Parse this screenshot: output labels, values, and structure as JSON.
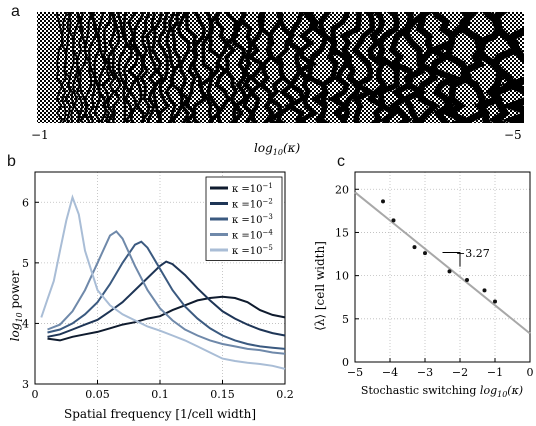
{
  "panel_a": {
    "letter": "a",
    "axis_left": "−1",
    "axis_right": "−5",
    "xlabel": "log",
    "xlabel_sub": "10",
    "xlabel_tail": "(κ)"
  },
  "panel_b": {
    "letter": "b",
    "ylabel": "log",
    "ylabel_sub": "10",
    "ylabel_tail": " power",
    "xlabel": "Spatial frequency [1/cell width]"
  },
  "panel_c": {
    "letter": "c",
    "ylabel": "⟨λ⟩ [cell width]",
    "xlabel_main": "Stochastic switching ",
    "xlabel_math": "log",
    "xlabel_sub": "10",
    "xlabel_tail": "(κ)",
    "slope_label": "−3.27"
  },
  "colors": {
    "k1": "#0f1b2e",
    "k2": "#1e3556",
    "k3": "#3b5a80",
    "k4": "#6f89aa",
    "k5": "#a9bdd6",
    "fit": "#a8a8a8"
  },
  "chart_data": [
    {
      "type": "line",
      "panel": "b",
      "xlabel": "Spatial frequency [1/cell width]",
      "ylabel": "log10 power",
      "xlim": [
        0,
        0.2
      ],
      "ylim": [
        3,
        6.5
      ],
      "xticks": [
        0,
        0.05,
        0.1,
        0.15,
        0.2
      ],
      "xtick_labels": [
        "0",
        "0.05",
        "0.1",
        "0.15",
        "0.2"
      ],
      "yticks": [
        3,
        4,
        5,
        6
      ],
      "ytick_labels": [
        "3",
        "4",
        "5",
        "6"
      ],
      "grid": true,
      "legend_position": "top-right",
      "series": [
        {
          "name": "κ=10⁻¹",
          "legend_base": "κ =10",
          "legend_exp": "−1",
          "color_key": "k1",
          "x": [
            0.01,
            0.02,
            0.03,
            0.04,
            0.05,
            0.06,
            0.07,
            0.08,
            0.09,
            0.1,
            0.11,
            0.12,
            0.13,
            0.14,
            0.15,
            0.16,
            0.17,
            0.18,
            0.19,
            0.2
          ],
          "y": [
            3.75,
            3.72,
            3.78,
            3.82,
            3.86,
            3.92,
            3.98,
            4.02,
            4.08,
            4.12,
            4.22,
            4.3,
            4.38,
            4.42,
            4.44,
            4.42,
            4.35,
            4.22,
            4.14,
            4.1
          ]
        },
        {
          "name": "κ=10⁻²",
          "legend_base": "κ =10",
          "legend_exp": "−2",
          "color_key": "k2",
          "x": [
            0.01,
            0.02,
            0.03,
            0.04,
            0.05,
            0.06,
            0.07,
            0.08,
            0.09,
            0.1,
            0.105,
            0.11,
            0.12,
            0.13,
            0.14,
            0.15,
            0.16,
            0.17,
            0.18,
            0.19,
            0.2
          ],
          "y": [
            3.78,
            3.82,
            3.9,
            3.98,
            4.06,
            4.2,
            4.35,
            4.55,
            4.75,
            4.95,
            5.02,
            4.98,
            4.8,
            4.58,
            4.38,
            4.2,
            4.08,
            3.98,
            3.9,
            3.84,
            3.8
          ]
        },
        {
          "name": "κ=10⁻³",
          "legend_base": "κ =10",
          "legend_exp": "−3",
          "color_key": "k3",
          "x": [
            0.01,
            0.02,
            0.03,
            0.04,
            0.05,
            0.06,
            0.07,
            0.08,
            0.085,
            0.09,
            0.1,
            0.11,
            0.12,
            0.13,
            0.14,
            0.15,
            0.16,
            0.17,
            0.18,
            0.19,
            0.2
          ],
          "y": [
            3.85,
            3.9,
            4.0,
            4.15,
            4.35,
            4.65,
            5.0,
            5.3,
            5.35,
            5.25,
            4.9,
            4.55,
            4.28,
            4.08,
            3.92,
            3.8,
            3.72,
            3.66,
            3.62,
            3.6,
            3.58
          ]
        },
        {
          "name": "κ=10⁻⁴",
          "legend_base": "κ =10",
          "legend_exp": "−4",
          "color_key": "k4",
          "x": [
            0.01,
            0.02,
            0.03,
            0.04,
            0.05,
            0.06,
            0.065,
            0.07,
            0.08,
            0.09,
            0.1,
            0.11,
            0.12,
            0.13,
            0.14,
            0.15,
            0.16,
            0.17,
            0.18,
            0.19,
            0.2
          ],
          "y": [
            3.9,
            3.98,
            4.2,
            4.55,
            5.0,
            5.45,
            5.52,
            5.4,
            4.95,
            4.55,
            4.25,
            4.05,
            3.9,
            3.8,
            3.72,
            3.66,
            3.62,
            3.58,
            3.56,
            3.52,
            3.5
          ]
        },
        {
          "name": "κ=10⁻⁵",
          "legend_base": "κ =10",
          "legend_exp": "−5",
          "color_key": "k5",
          "x": [
            0.005,
            0.01,
            0.015,
            0.02,
            0.025,
            0.03,
            0.035,
            0.04,
            0.05,
            0.06,
            0.07,
            0.08,
            0.09,
            0.1,
            0.11,
            0.12,
            0.13,
            0.14,
            0.15,
            0.16,
            0.17,
            0.18,
            0.19,
            0.2
          ],
          "y": [
            4.1,
            4.4,
            4.7,
            5.2,
            5.7,
            6.08,
            5.8,
            5.2,
            4.55,
            4.3,
            4.15,
            4.05,
            3.95,
            3.88,
            3.8,
            3.72,
            3.62,
            3.52,
            3.42,
            3.38,
            3.35,
            3.33,
            3.3,
            3.25
          ]
        }
      ]
    },
    {
      "type": "scatter",
      "panel": "c",
      "xlabel": "Stochastic switching log10(κ)",
      "ylabel": "⟨λ⟩ [cell width]",
      "xlim": [
        -5,
        0
      ],
      "ylim": [
        0,
        22
      ],
      "xticks": [
        -5,
        -4,
        -3,
        -2,
        -1,
        0
      ],
      "xtick_labels": [
        "−5",
        "−4",
        "−3",
        "−2",
        "−1",
        "0"
      ],
      "yticks": [
        0,
        5,
        10,
        15,
        20
      ],
      "ytick_labels": [
        "0",
        "5",
        "10",
        "15",
        "20"
      ],
      "grid": true,
      "points": [
        {
          "x": -4.2,
          "y": 18.6
        },
        {
          "x": -3.9,
          "y": 16.4
        },
        {
          "x": -3.3,
          "y": 13.3
        },
        {
          "x": -3.0,
          "y": 12.6
        },
        {
          "x": -2.3,
          "y": 10.5
        },
        {
          "x": -1.8,
          "y": 9.5
        },
        {
          "x": -1.3,
          "y": 8.3
        },
        {
          "x": -1.0,
          "y": 7.0
        }
      ],
      "fit_line": {
        "slope": -3.27,
        "intercept": 3.3
      }
    }
  ]
}
